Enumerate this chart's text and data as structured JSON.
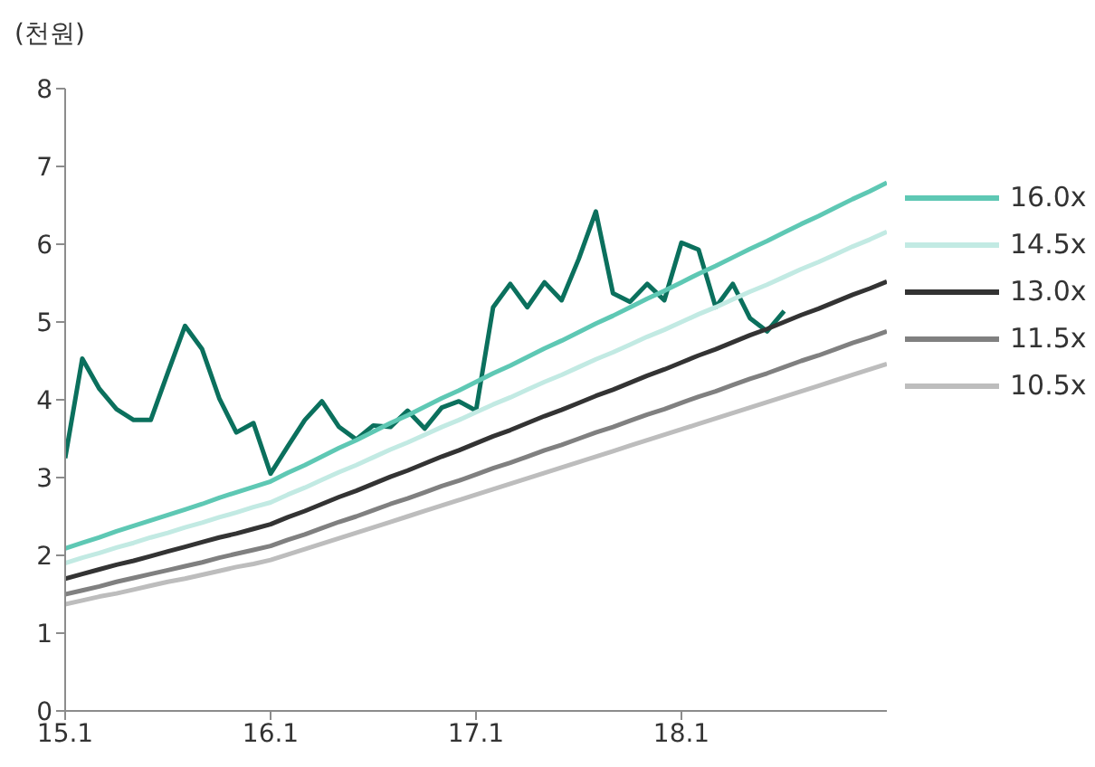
{
  "chart_data": {
    "type": "line",
    "ylabel": "(천원)",
    "categories": [
      "15.1",
      null,
      null,
      null,
      null,
      null,
      null,
      null,
      null,
      null,
      null,
      null,
      "16.1",
      null,
      null,
      null,
      null,
      null,
      null,
      null,
      null,
      null,
      null,
      null,
      "17.1",
      null,
      null,
      null,
      null,
      null,
      null,
      null,
      null,
      null,
      null,
      null,
      "18.1",
      null,
      null,
      null,
      null,
      null,
      null,
      null,
      null,
      null,
      null,
      null,
      null
    ],
    "ylim": [
      0,
      8
    ],
    "yticks": [
      0,
      1,
      2,
      3,
      4,
      5,
      6,
      7,
      8
    ],
    "grid": false,
    "legend": "right",
    "marker": "none",
    "line_style": "solid",
    "series": [
      {
        "color": "#0b705d",
        "values": [
          3.25,
          4.53,
          4.14,
          3.88,
          3.74,
          3.74,
          4.35,
          4.95,
          4.65,
          4.02,
          3.58,
          3.7,
          3.05,
          3.4,
          3.74,
          3.98,
          3.65,
          3.49,
          3.67,
          3.65,
          3.86,
          3.63,
          3.9,
          3.98,
          3.86,
          5.19,
          5.49,
          5.19,
          5.51,
          5.28,
          5.81,
          6.42,
          5.37,
          5.26,
          5.49,
          5.28,
          6.02,
          5.93,
          5.19,
          5.49,
          5.05,
          4.88,
          5.14,
          null,
          null,
          null,
          null,
          null,
          null
        ]
      },
      {
        "name": "16.0x",
        "color": "#5ec8b4",
        "values": [
          2.09,
          2.16,
          2.23,
          2.31,
          2.38,
          2.45,
          2.52,
          2.59,
          2.66,
          2.74,
          2.81,
          2.88,
          2.95,
          3.06,
          3.16,
          3.27,
          3.38,
          3.48,
          3.59,
          3.7,
          3.8,
          3.91,
          4.02,
          4.12,
          4.23,
          4.34,
          4.44,
          4.55,
          4.66,
          4.76,
          4.87,
          4.98,
          5.08,
          5.19,
          5.3,
          5.4,
          5.51,
          5.62,
          5.72,
          5.83,
          5.94,
          6.04,
          6.15,
          6.26,
          6.36,
          6.47,
          6.58,
          6.68,
          6.79
        ]
      },
      {
        "name": "14.5x",
        "color": "#c2eae3",
        "values": [
          1.9,
          1.97,
          2.03,
          2.1,
          2.16,
          2.23,
          2.29,
          2.36,
          2.42,
          2.49,
          2.55,
          2.62,
          2.68,
          2.78,
          2.87,
          2.97,
          3.07,
          3.16,
          3.26,
          3.36,
          3.45,
          3.55,
          3.65,
          3.74,
          3.84,
          3.94,
          4.03,
          4.13,
          4.23,
          4.32,
          4.42,
          4.52,
          4.61,
          4.71,
          4.81,
          4.9,
          5.0,
          5.1,
          5.19,
          5.29,
          5.39,
          5.48,
          5.58,
          5.68,
          5.77,
          5.87,
          5.97,
          6.06,
          6.16
        ]
      },
      {
        "name": "13.0x",
        "color": "#333333",
        "values": [
          1.7,
          1.76,
          1.82,
          1.88,
          1.93,
          1.99,
          2.05,
          2.11,
          2.17,
          2.23,
          2.28,
          2.34,
          2.4,
          2.49,
          2.57,
          2.66,
          2.75,
          2.83,
          2.92,
          3.01,
          3.09,
          3.18,
          3.27,
          3.35,
          3.44,
          3.53,
          3.61,
          3.7,
          3.79,
          3.87,
          3.96,
          4.05,
          4.13,
          4.22,
          4.31,
          4.39,
          4.48,
          4.57,
          4.65,
          4.74,
          4.83,
          4.91,
          5.0,
          5.09,
          5.17,
          5.26,
          5.35,
          5.43,
          5.52
        ]
      },
      {
        "name": "11.5x",
        "color": "#808080",
        "values": [
          1.5,
          1.55,
          1.6,
          1.66,
          1.71,
          1.76,
          1.81,
          1.86,
          1.91,
          1.97,
          2.02,
          2.07,
          2.12,
          2.2,
          2.27,
          2.35,
          2.43,
          2.5,
          2.58,
          2.66,
          2.73,
          2.81,
          2.89,
          2.96,
          3.04,
          3.12,
          3.19,
          3.27,
          3.35,
          3.42,
          3.5,
          3.58,
          3.65,
          3.73,
          3.81,
          3.88,
          3.96,
          4.04,
          4.11,
          4.19,
          4.27,
          4.34,
          4.42,
          4.5,
          4.57,
          4.65,
          4.73,
          4.8,
          4.88
        ]
      },
      {
        "name": "10.5x",
        "color": "#bdbdbd",
        "values": [
          1.37,
          1.42,
          1.47,
          1.51,
          1.56,
          1.61,
          1.66,
          1.7,
          1.75,
          1.8,
          1.85,
          1.89,
          1.94,
          2.01,
          2.08,
          2.15,
          2.22,
          2.29,
          2.36,
          2.43,
          2.5,
          2.57,
          2.64,
          2.71,
          2.78,
          2.85,
          2.92,
          2.99,
          3.06,
          3.13,
          3.2,
          3.27,
          3.34,
          3.41,
          3.48,
          3.55,
          3.62,
          3.69,
          3.76,
          3.83,
          3.9,
          3.97,
          4.04,
          4.11,
          4.18,
          4.25,
          4.32,
          4.39,
          4.46
        ]
      }
    ]
  }
}
